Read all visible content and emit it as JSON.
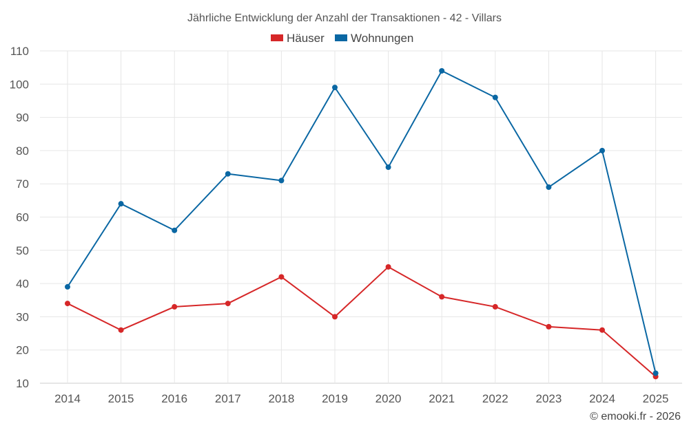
{
  "chart_data": {
    "type": "line",
    "title": "Jährliche Entwicklung der Anzahl der Transaktionen - 42 - Villars",
    "categories": [
      "2014",
      "2015",
      "2016",
      "2017",
      "2018",
      "2019",
      "2020",
      "2021",
      "2022",
      "2023",
      "2024",
      "2025"
    ],
    "series": [
      {
        "name": "Häuser",
        "color": "#d62728",
        "values": [
          34,
          26,
          33,
          34,
          42,
          30,
          45,
          36,
          33,
          27,
          26,
          12
        ]
      },
      {
        "name": "Wohnungen",
        "color": "#0a67a3",
        "values": [
          39,
          64,
          56,
          73,
          71,
          99,
          75,
          104,
          96,
          69,
          80,
          13
        ]
      }
    ],
    "ylim": [
      10,
      110
    ],
    "yticks": [
      10,
      20,
      30,
      40,
      50,
      60,
      70,
      80,
      90,
      100,
      110
    ],
    "xlabel": "",
    "ylabel": "",
    "grid": true,
    "legend_position": "top-center"
  },
  "credit": "© emooki.fr - 2026"
}
